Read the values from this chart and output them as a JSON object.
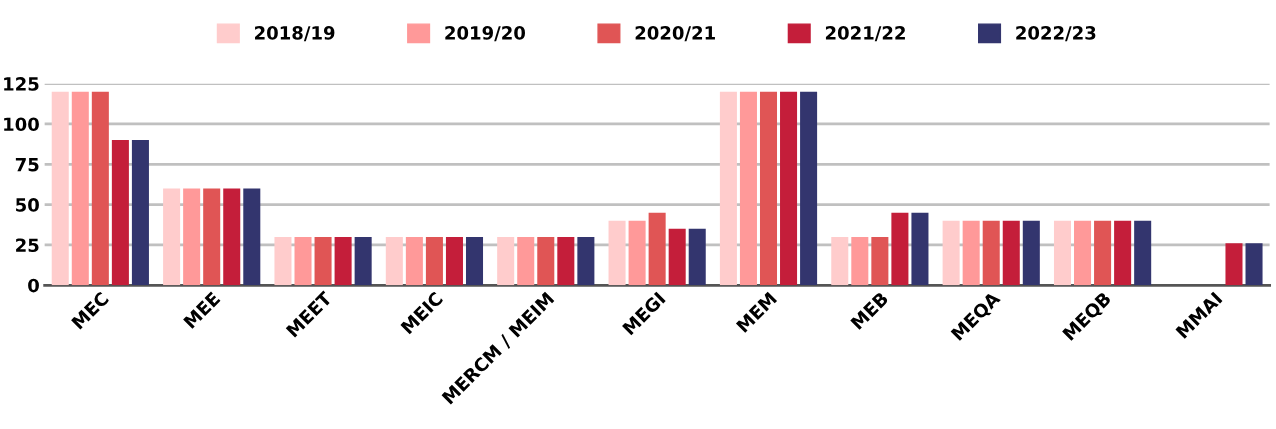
{
  "chart_data": {
    "type": "bar",
    "categories": [
      "MEC",
      "MEE",
      "MEET",
      "MEIC",
      "MERCM / MEIM",
      "MEGI",
      "MEM",
      "MEB",
      "MEQA",
      "MEQB",
      "MMAI"
    ],
    "series": [
      {
        "name": "2018/19",
        "color": "#ffcccc",
        "values": [
          120,
          60,
          30,
          30,
          30,
          40,
          120,
          30,
          40,
          40,
          0
        ]
      },
      {
        "name": "2019/20",
        "color": "#ff9999",
        "values": [
          120,
          60,
          30,
          30,
          30,
          40,
          120,
          30,
          40,
          40,
          0
        ]
      },
      {
        "name": "2020/21",
        "color": "#e05555",
        "values": [
          120,
          60,
          30,
          30,
          30,
          45,
          120,
          30,
          40,
          40,
          0
        ]
      },
      {
        "name": "2021/22",
        "color": "#c41e3a",
        "values": [
          90,
          60,
          30,
          30,
          30,
          35,
          120,
          45,
          40,
          40,
          26
        ]
      },
      {
        "name": "2022/23",
        "color": "#33356e",
        "values": [
          90,
          60,
          30,
          30,
          30,
          35,
          120,
          45,
          40,
          40,
          26
        ]
      }
    ],
    "ylim": [
      0,
      125
    ],
    "yticks": [
      0,
      25,
      50,
      75,
      100,
      125
    ],
    "grid": "y",
    "legend": "top"
  }
}
